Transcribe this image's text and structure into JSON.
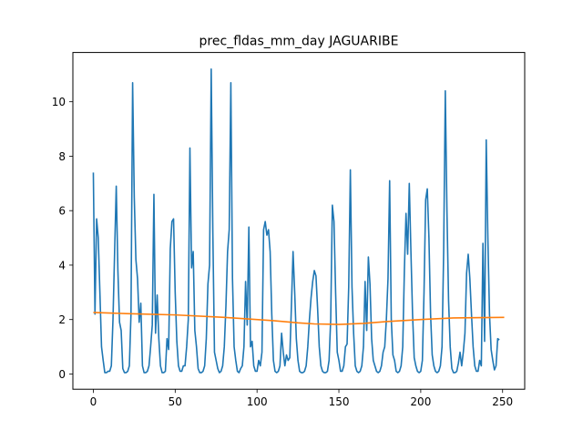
{
  "chart_data": {
    "type": "line",
    "title": "prec_fldas_mm_day JAGUARIBE",
    "xlabel": "",
    "ylabel": "",
    "xlim": [
      -12.5,
      263.5
    ],
    "ylim": [
      -0.56,
      11.81
    ],
    "grid": false,
    "legend": "none",
    "x_ticks": [
      0,
      50,
      100,
      150,
      200,
      250
    ],
    "x_tick_labels": [
      "0",
      "50",
      "100",
      "150",
      "200",
      "250"
    ],
    "y_ticks": [
      0,
      2,
      4,
      6,
      8,
      10
    ],
    "y_tick_labels": [
      "0",
      "2",
      "4",
      "6",
      "8",
      "10"
    ],
    "series": [
      {
        "color": "#1f77b4",
        "x_start": 0,
        "values": [
          7.4,
          2.2,
          5.7,
          5.0,
          3.0,
          1.0,
          0.5,
          0.05,
          0.05,
          0.1,
          0.1,
          0.3,
          2.0,
          4.5,
          6.9,
          3.8,
          1.9,
          1.6,
          0.2,
          0.05,
          0.05,
          0.1,
          0.3,
          2.2,
          10.7,
          6.5,
          4.2,
          3.5,
          1.9,
          2.6,
          0.3,
          0.05,
          0.05,
          0.1,
          0.3,
          1.0,
          1.8,
          6.6,
          1.5,
          2.9,
          1.3,
          0.3,
          0.05,
          0.05,
          0.1,
          1.3,
          0.9,
          4.6,
          5.6,
          5.7,
          3.0,
          1.2,
          0.3,
          0.1,
          0.1,
          0.3,
          0.3,
          1.0,
          2.0,
          8.3,
          3.9,
          4.5,
          1.6,
          1.0,
          0.2,
          0.05,
          0.05,
          0.1,
          0.3,
          1.3,
          3.3,
          4.0,
          11.2,
          5.2,
          0.8,
          0.5,
          0.2,
          0.05,
          0.1,
          0.3,
          1.0,
          2.5,
          4.5,
          5.3,
          10.7,
          3.5,
          1.0,
          0.5,
          0.1,
          0.05,
          0.2,
          0.3,
          1.0,
          3.4,
          1.8,
          5.4,
          1.0,
          1.2,
          0.3,
          0.1,
          0.1,
          0.5,
          0.3,
          0.8,
          5.3,
          5.6,
          5.1,
          5.3,
          4.5,
          2.2,
          0.5,
          0.1,
          0.05,
          0.1,
          0.3,
          1.5,
          0.8,
          0.3,
          0.7,
          0.5,
          0.6,
          2.5,
          4.5,
          3.0,
          1.3,
          0.5,
          0.1,
          0.05,
          0.05,
          0.1,
          0.3,
          1.0,
          2.0,
          2.8,
          3.4,
          3.8,
          3.6,
          2.4,
          1.0,
          0.3,
          0.1,
          0.05,
          0.05,
          0.1,
          0.5,
          2.0,
          6.2,
          5.6,
          3.0,
          0.8,
          0.5,
          0.1,
          0.1,
          0.3,
          1.0,
          1.1,
          3.2,
          7.5,
          3.2,
          1.5,
          0.3,
          0.1,
          0.05,
          0.1,
          0.3,
          1.0,
          3.4,
          1.6,
          4.3,
          3.3,
          1.3,
          0.5,
          0.3,
          0.1,
          0.05,
          0.1,
          0.3,
          0.8,
          1.0,
          2.0,
          3.5,
          7.1,
          2.0,
          0.7,
          0.5,
          0.1,
          0.05,
          0.1,
          0.3,
          1.0,
          3.8,
          5.9,
          4.4,
          7.0,
          4.5,
          2.2,
          0.6,
          0.3,
          0.1,
          0.05,
          0.1,
          0.5,
          3.0,
          6.4,
          6.8,
          5.0,
          2.2,
          0.7,
          0.3,
          0.1,
          0.05,
          0.1,
          0.3,
          1.0,
          4.5,
          10.4,
          6.0,
          2.7,
          1.0,
          0.2,
          0.05,
          0.05,
          0.1,
          0.4,
          0.8,
          0.3,
          0.8,
          1.5,
          3.7,
          4.4,
          3.5,
          2.2,
          1.0,
          0.3,
          0.1,
          0.1,
          0.5,
          0.3,
          4.8,
          1.2,
          8.6,
          5.0,
          2.2,
          0.9,
          0.5,
          0.15,
          0.3,
          1.3,
          1.25
        ]
      },
      {
        "color": "#ff7f0e",
        "x_start": 0,
        "x_end": 251,
        "trend_points": [
          [
            0,
            2.26
          ],
          [
            20,
            2.22
          ],
          [
            50,
            2.17
          ],
          [
            80,
            2.08
          ],
          [
            110,
            1.96
          ],
          [
            125,
            1.88
          ],
          [
            135,
            1.84
          ],
          [
            150,
            1.82
          ],
          [
            165,
            1.86
          ],
          [
            180,
            1.93
          ],
          [
            200,
            2.0
          ],
          [
            220,
            2.06
          ],
          [
            251,
            2.08
          ]
        ]
      }
    ]
  }
}
